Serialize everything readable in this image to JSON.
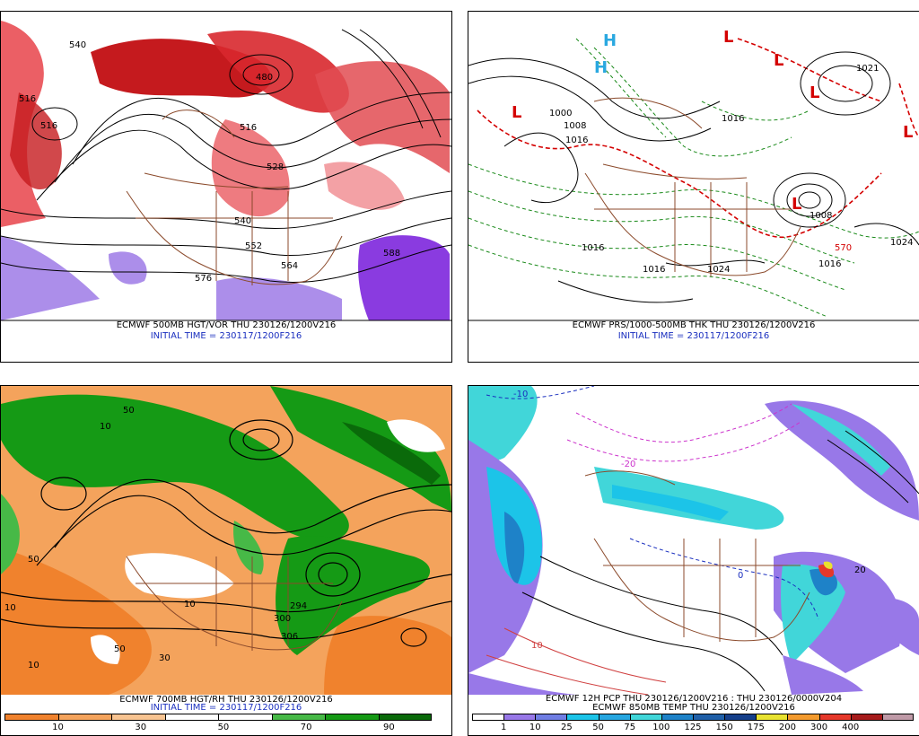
{
  "panels": {
    "p1": {
      "caption_main": "ECMWF 500MB HGT/VOR THU 230126/1200V216",
      "caption_init": "INITIAL TIME = 230117/1200F216",
      "labels": [
        "540",
        "516",
        "480",
        "516",
        "528",
        "540",
        "552",
        "564",
        "576",
        "588",
        "516"
      ]
    },
    "p2": {
      "caption_main": "ECMWF PRS/1000-500MB THK THU 230126/1200V216",
      "caption_init": "INITIAL TIME = 230117/1200F216",
      "labels": [
        "1000",
        "1008",
        "1016",
        "1016",
        "1024",
        "1016",
        "1016",
        "1024",
        "1021",
        "1008",
        "570",
        "1016"
      ]
    },
    "p3": {
      "caption_main": "ECMWF 700MB HGT/RH THU 230126/1200V216",
      "caption_init": "INITIAL TIME = 230117/1200F216",
      "colorbar": {
        "colors": [
          "#f0822d",
          "#f4a35c",
          "#f8c491",
          "#ffffff",
          "#ffffff",
          "#47b947",
          "#159a15",
          "#0a6a0a"
        ],
        "ticks": [
          "10",
          "30",
          "50",
          "70",
          "90"
        ]
      },
      "labels": [
        "50",
        "10",
        "50",
        "10",
        "10",
        "306",
        "300",
        "294",
        "30",
        "10",
        "50"
      ]
    },
    "p4": {
      "caption_main": "ECMWF 12H PCP THU 230126/1200V216 : THU 230126/0000V204",
      "caption_init": "ECMWF 850MB TEMP THU 230126/1200V216",
      "colorbar": {
        "colors": [
          "#ffffff",
          "#9878e8",
          "#6f7de3",
          "#1cc4e8",
          "#26a6e0",
          "#41d6d9",
          "#1e82c8",
          "#1f5fa8",
          "#153f8a",
          "#e8e230",
          "#f39a2d",
          "#e5382a",
          "#a61b1b",
          "#bf9aa7"
        ],
        "ticks": [
          "1",
          "10",
          "25",
          "50",
          "75",
          "100",
          "125",
          "150",
          "175",
          "200",
          "300",
          "400"
        ]
      },
      "labels": [
        "-10",
        "-20",
        "10",
        "20",
        "0"
      ]
    }
  },
  "pressure_centers": {
    "p2": [
      "L",
      "L",
      "L",
      "L",
      "L",
      "L",
      "H",
      "H"
    ]
  }
}
